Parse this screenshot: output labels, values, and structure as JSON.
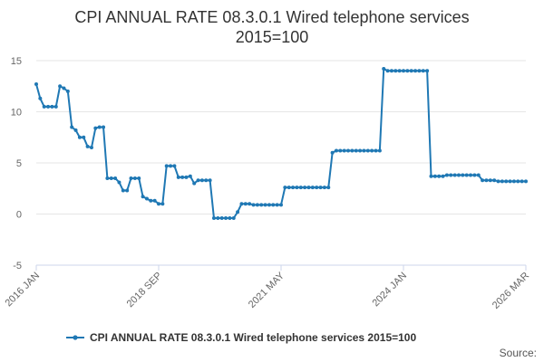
{
  "chart_data": {
    "type": "line",
    "title_lines": [
      "CPI ANNUAL RATE 08.3.0.1 Wired telephone services",
      "2015=100"
    ],
    "xlabel": "",
    "ylabel": "",
    "x_tick_labels": [
      "2016 JAN",
      "2018 SEP",
      "2021 MAY",
      "2024 JAN",
      "2026 MAR"
    ],
    "y_ticks": [
      15,
      10,
      5,
      0,
      -5
    ],
    "ylim": [
      -5,
      15
    ],
    "grid": "horizontal",
    "legend_position": "bottom",
    "source_label": "Source:",
    "color": "#1f78b4",
    "series": [
      {
        "name": "CPI ANNUAL RATE 08.3.0.1 Wired telephone services 2015=100",
        "values": [
          12.7,
          11.3,
          10.5,
          10.5,
          10.5,
          10.5,
          12.5,
          12.3,
          12.0,
          8.5,
          8.2,
          7.5,
          7.5,
          6.6,
          6.5,
          8.4,
          8.5,
          8.5,
          3.5,
          3.5,
          3.5,
          3.1,
          2.3,
          2.3,
          3.5,
          3.5,
          3.5,
          1.7,
          1.5,
          1.3,
          1.3,
          1.0,
          1.0,
          4.7,
          4.7,
          4.7,
          3.6,
          3.6,
          3.6,
          3.7,
          3.0,
          3.3,
          3.3,
          3.3,
          3.3,
          -0.4,
          -0.4,
          -0.4,
          -0.4,
          -0.4,
          -0.4,
          0.2,
          1.0,
          1.0,
          1.0,
          0.9,
          0.9,
          0.9,
          0.9,
          0.9,
          0.9,
          0.9,
          0.9,
          2.6,
          2.6,
          2.6,
          2.6,
          2.6,
          2.6,
          2.6,
          2.6,
          2.6,
          2.6,
          2.6,
          2.6,
          6.0,
          6.2,
          6.2,
          6.2,
          6.2,
          6.2,
          6.2,
          6.2,
          6.2,
          6.2,
          6.2,
          6.2,
          6.2,
          14.2,
          14.0,
          14.0,
          14.0,
          14.0,
          14.0,
          14.0,
          14.0,
          14.0,
          14.0,
          14.0,
          14.0,
          3.7,
          3.7,
          3.7,
          3.7,
          3.8,
          3.8,
          3.8,
          3.8,
          3.8,
          3.8,
          3.8,
          3.8,
          3.8,
          3.3,
          3.3,
          3.3,
          3.3,
          3.2,
          3.2,
          3.2,
          3.2,
          3.2,
          3.2,
          3.2,
          3.2
        ]
      }
    ]
  }
}
